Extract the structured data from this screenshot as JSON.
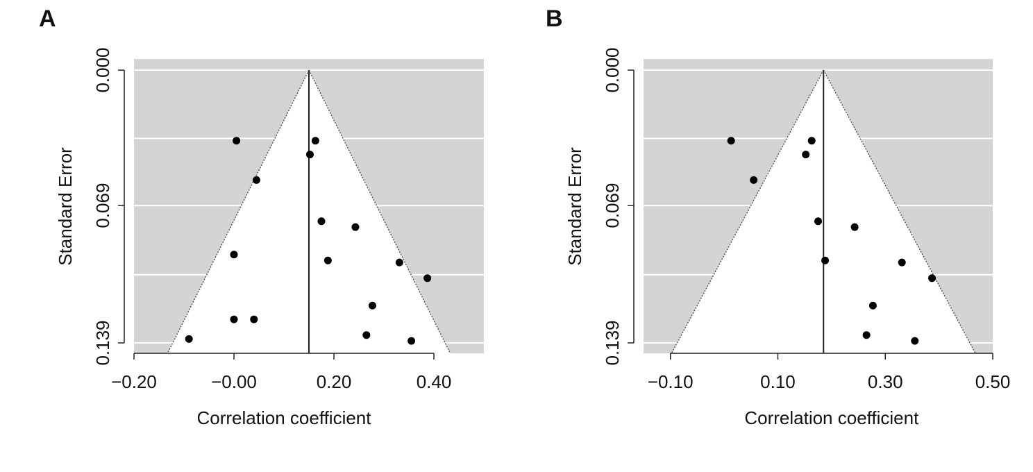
{
  "chart_data": [
    {
      "panel": "A",
      "type": "scatter",
      "xlabel": "Correlation coefficient",
      "ylabel": "Standard Error",
      "xlim": [
        -0.2,
        0.5
      ],
      "ylim": [
        0.0,
        0.139
      ],
      "y_reversed": true,
      "x_ticks": [
        -0.2,
        0.0,
        0.2,
        0.4
      ],
      "x_tick_labels": [
        "−0.20",
        "−0.00",
        "0.20",
        "0.40"
      ],
      "y_ticks": [
        0.0,
        0.069,
        0.139
      ],
      "y_tick_labels": [
        "0.000",
        "0.069",
        "0.139"
      ],
      "y_gridlines": [
        0.0,
        0.0348,
        0.069,
        0.1043,
        0.139
      ],
      "funnel_center": 0.15,
      "funnel_type": "contour-enhanced funnel",
      "shading": "gray outside funnel",
      "grid": true,
      "points": [
        {
          "x": 0.005,
          "y": 0.036
        },
        {
          "x": 0.163,
          "y": 0.036
        },
        {
          "x": 0.152,
          "y": 0.043
        },
        {
          "x": 0.045,
          "y": 0.056
        },
        {
          "x": 0.175,
          "y": 0.077
        },
        {
          "x": 0.243,
          "y": 0.08
        },
        {
          "x": 0.0,
          "y": 0.094
        },
        {
          "x": 0.188,
          "y": 0.097
        },
        {
          "x": 0.331,
          "y": 0.098
        },
        {
          "x": 0.387,
          "y": 0.106
        },
        {
          "x": 0.277,
          "y": 0.12
        },
        {
          "x": 0.0,
          "y": 0.127
        },
        {
          "x": 0.04,
          "y": 0.127
        },
        {
          "x": 0.265,
          "y": 0.135
        },
        {
          "x": -0.09,
          "y": 0.137
        },
        {
          "x": 0.355,
          "y": 0.138
        }
      ]
    },
    {
      "panel": "B",
      "type": "scatter",
      "xlabel": "Correlation coefficient",
      "ylabel": "Standard Error",
      "xlim": [
        -0.15,
        0.5
      ],
      "ylim": [
        0.0,
        0.139
      ],
      "y_reversed": true,
      "x_ticks": [
        -0.1,
        0.1,
        0.3,
        0.5
      ],
      "x_tick_labels": [
        "−0.10",
        "0.10",
        "0.30",
        "0.50"
      ],
      "y_ticks": [
        0.0,
        0.069,
        0.139
      ],
      "y_tick_labels": [
        "0.000",
        "0.069",
        "0.139"
      ],
      "y_gridlines": [
        0.0,
        0.0348,
        0.069,
        0.1043,
        0.139
      ],
      "funnel_center": 0.185,
      "funnel_type": "contour-enhanced funnel",
      "shading": "gray outside funnel",
      "grid": true,
      "points": [
        {
          "x": 0.013,
          "y": 0.036
        },
        {
          "x": 0.163,
          "y": 0.036
        },
        {
          "x": 0.152,
          "y": 0.043
        },
        {
          "x": 0.055,
          "y": 0.056
        },
        {
          "x": 0.175,
          "y": 0.077
        },
        {
          "x": 0.243,
          "y": 0.08
        },
        {
          "x": 0.188,
          "y": 0.097
        },
        {
          "x": 0.331,
          "y": 0.098
        },
        {
          "x": 0.387,
          "y": 0.106
        },
        {
          "x": 0.277,
          "y": 0.12
        },
        {
          "x": 0.265,
          "y": 0.135
        },
        {
          "x": 0.355,
          "y": 0.138
        }
      ]
    }
  ]
}
